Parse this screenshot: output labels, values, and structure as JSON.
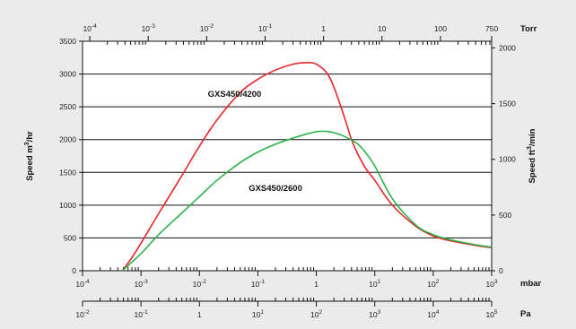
{
  "chart_data": {
    "type": "line",
    "x_scale": "log",
    "xlim_mbar": [
      0.0001,
      1000
    ],
    "ylim_left": [
      0,
      3500
    ],
    "ylim_right": [
      0,
      2060
    ],
    "grid": "horizontal",
    "ylabel_left": {
      "main": "Speed",
      "unit_base": "m",
      "unit_sup": "3",
      "unit_tail": "/hr"
    },
    "ylabel_right": {
      "main": "Speed",
      "unit_base": "ft",
      "unit_sup": "3",
      "unit_tail": "/min"
    },
    "left_ticks": [
      "0",
      "500",
      "1000",
      "1500",
      "2000",
      "2500",
      "3000",
      "3500"
    ],
    "right_ticks": [
      {
        "value": 0,
        "label": "0"
      },
      {
        "value": 500,
        "label": "500"
      },
      {
        "value": 1000,
        "label": "1000"
      },
      {
        "value": 1500,
        "label": "1500"
      },
      {
        "value": 2000,
        "label": "2000"
      }
    ],
    "top_axis": {
      "unit": "Torr",
      "ticks": [
        {
          "mbar": 0.000133,
          "base": "10",
          "exp": "-4"
        },
        {
          "mbar": 0.00133,
          "base": "10",
          "exp": "-3"
        },
        {
          "mbar": 0.0133,
          "base": "10",
          "exp": "-2"
        },
        {
          "mbar": 0.133,
          "base": "10",
          "exp": "-1"
        },
        {
          "mbar": 1.33,
          "base": "1",
          "exp": ""
        },
        {
          "mbar": 13.3,
          "base": "10",
          "exp": ""
        },
        {
          "mbar": 133,
          "base": "100",
          "exp": ""
        },
        {
          "mbar": 1000,
          "base": "750",
          "exp": ""
        }
      ]
    },
    "bottom_axis": {
      "unit": "mbar",
      "ticks": [
        {
          "mbar": 0.0001,
          "base": "10",
          "exp": "-4"
        },
        {
          "mbar": 0.001,
          "base": "10",
          "exp": "-3"
        },
        {
          "mbar": 0.01,
          "base": "10",
          "exp": "-2"
        },
        {
          "mbar": 0.1,
          "base": "10",
          "exp": "-1"
        },
        {
          "mbar": 1,
          "base": "1",
          "exp": ""
        },
        {
          "mbar": 10,
          "base": "10",
          "exp": "1"
        },
        {
          "mbar": 100,
          "base": "10",
          "exp": "2"
        },
        {
          "mbar": 1000,
          "base": "10",
          "exp": "3"
        }
      ]
    },
    "pa_axis": {
      "unit": "Pa",
      "ticks": [
        {
          "mbar": 0.0001,
          "base": "10",
          "exp": "-2"
        },
        {
          "mbar": 0.001,
          "base": "10",
          "exp": "-1"
        },
        {
          "mbar": 0.01,
          "base": "1",
          "exp": ""
        },
        {
          "mbar": 0.1,
          "base": "10",
          "exp": "1"
        },
        {
          "mbar": 1,
          "base": "10",
          "exp": "2"
        },
        {
          "mbar": 10,
          "base": "10",
          "exp": "3"
        },
        {
          "mbar": 100,
          "base": "10",
          "exp": "4"
        },
        {
          "mbar": 1000,
          "base": "10",
          "exp": "5"
        }
      ]
    },
    "series": [
      {
        "name": "GXS450/4200",
        "color": "#e8262a",
        "x": [
          0.00048,
          0.0007,
          0.001,
          0.002,
          0.005,
          0.01,
          0.02,
          0.05,
          0.1,
          0.2,
          0.4,
          0.7,
          1,
          1.5,
          2,
          3,
          4,
          5,
          7,
          10,
          20,
          50,
          100,
          200,
          500,
          1000
        ],
        "y": [
          0,
          200,
          420,
          870,
          1450,
          1900,
          2300,
          2720,
          2920,
          3060,
          3150,
          3175,
          3150,
          3020,
          2800,
          2350,
          2000,
          1800,
          1560,
          1380,
          1000,
          680,
          530,
          455,
          390,
          350
        ]
      },
      {
        "name": "GXS450/2600",
        "color": "#2db34a",
        "x": [
          0.00048,
          0.001,
          0.002,
          0.005,
          0.01,
          0.02,
          0.05,
          0.1,
          0.2,
          0.5,
          1,
          1.5,
          2,
          3,
          5,
          7,
          10,
          20,
          50,
          100,
          200,
          500,
          1000
        ],
        "y": [
          0,
          260,
          550,
          880,
          1130,
          1380,
          1650,
          1810,
          1930,
          2050,
          2120,
          2125,
          2105,
          2050,
          1940,
          1800,
          1600,
          1100,
          700,
          550,
          470,
          400,
          360
        ]
      }
    ],
    "annotations": [
      {
        "text": "GXS450/4200",
        "x_mbar": 0.04,
        "y": 2650
      },
      {
        "text": "GXS450/2600",
        "x_mbar": 0.2,
        "y": 1220
      }
    ]
  }
}
